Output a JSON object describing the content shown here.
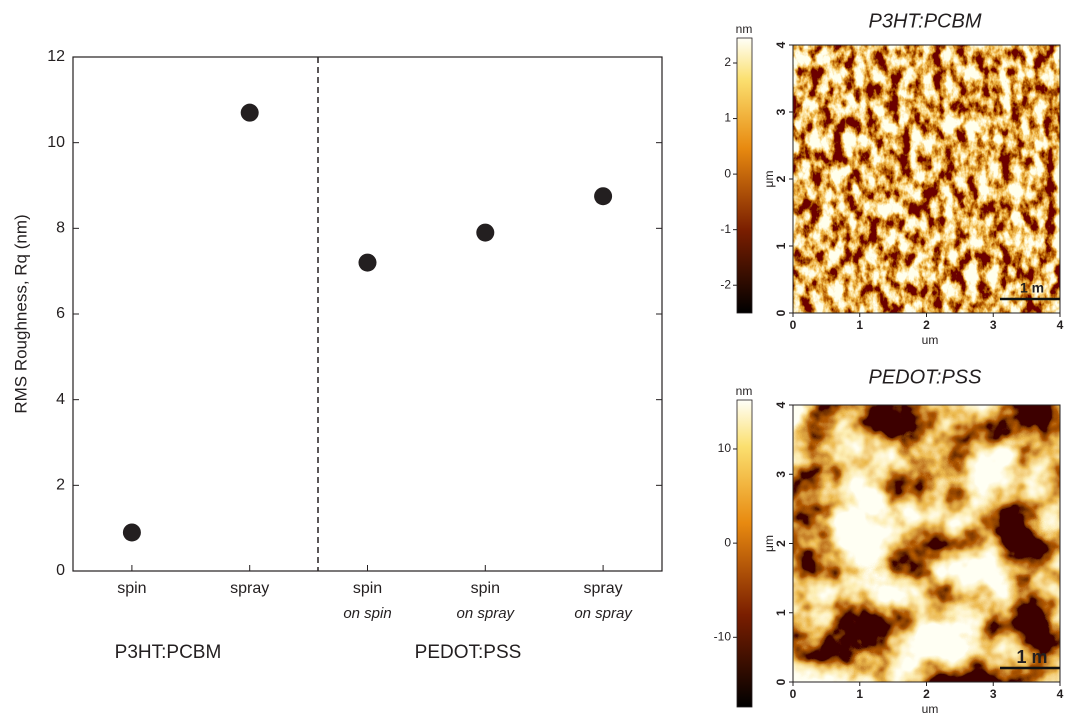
{
  "chart_data": [
    {
      "type": "scatter",
      "y_label": "RMS Roughness, Rq (nm)",
      "categories": [
        "spin",
        "spray",
        "spin",
        "spin",
        "spray"
      ],
      "category_notes": [
        null,
        null,
        "on spin",
        "on spray",
        "on spray"
      ],
      "groups": [
        "P3HT:PCBM",
        "PEDOT:PSS"
      ],
      "values": [
        0.9,
        10.7,
        7.2,
        7.9,
        8.75
      ],
      "color": "#231f20",
      "ylim": [
        0,
        12
      ],
      "yticks": [
        0,
        2,
        4,
        6,
        8,
        10,
        12
      ]
    },
    {
      "type": "image",
      "title": "P3HT:PCBM",
      "colorbar_label": "nm",
      "clim": [
        -2.5,
        2.45
      ],
      "cticks": [
        2,
        1,
        0,
        -1,
        -2
      ],
      "xlim": [
        0,
        4
      ],
      "xticks": [
        0,
        1,
        2,
        3,
        4
      ],
      "ylim": [
        0,
        4
      ],
      "yticks": [
        0,
        1,
        2,
        3,
        4
      ],
      "x_label": "um",
      "y_label": "μm",
      "scale_bar": "1 m"
    },
    {
      "type": "image",
      "title": "PEDOT:PSS",
      "colorbar_label": "nm",
      "clim": [
        -17.4,
        15.2
      ],
      "cticks": [
        10,
        0,
        -10
      ],
      "xlim": [
        0,
        4
      ],
      "xticks": [
        0,
        1,
        2,
        3,
        4
      ],
      "ylim": [
        0,
        4
      ],
      "yticks": [
        0,
        1,
        2,
        3,
        4
      ],
      "x_label": "um",
      "y_label": "μm",
      "scale_bar": "1 m"
    }
  ]
}
